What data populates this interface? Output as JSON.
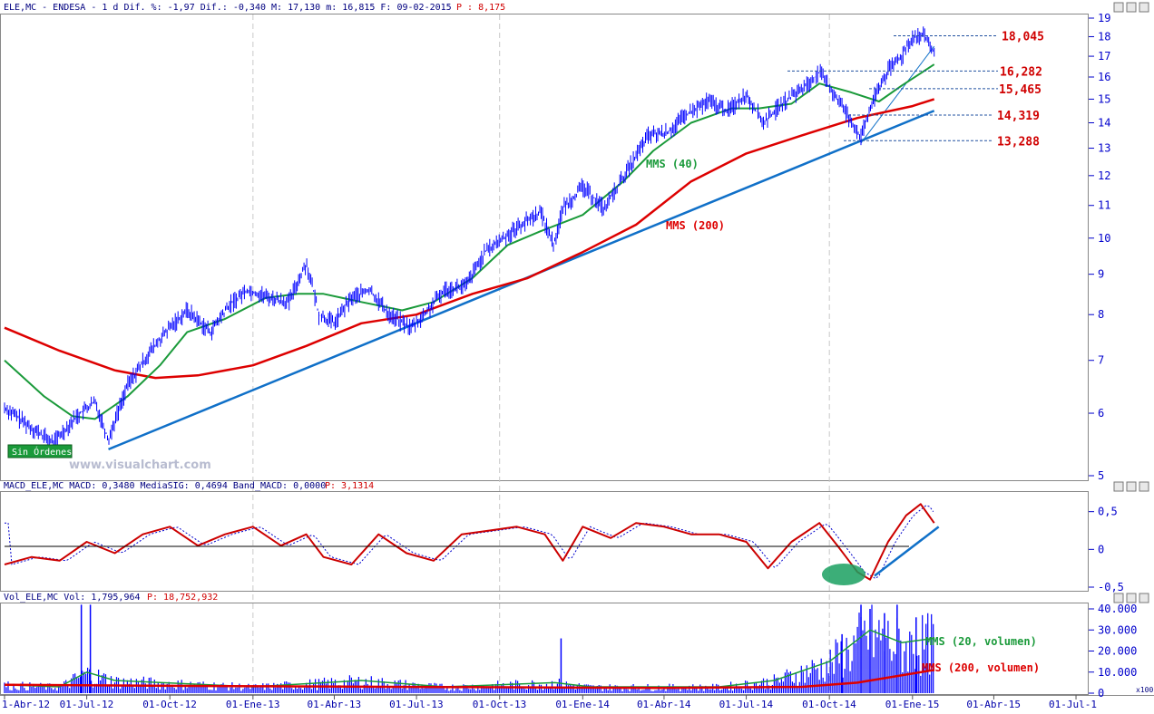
{
  "headers": {
    "price": "ELE,MC - ENDESA -  1 d Dif. %: -1,97 Dif.: -0,340 M: 17,130 m: 16,815 F: 09-02-2015",
    "price_p": "P : 8,175",
    "macd": "MACD_ELE,MC MACD: 0,3480 MediaSIG: 0,4694 Band_MACD: 0,0000",
    "macd_p": "P: 3,1314",
    "vol": "Vol_ELE,MC Vol: 1,795,964",
    "vol_p": "P: 18,752,932"
  },
  "badge": "Sin Órdenes",
  "watermark": "www.visualchart.com",
  "volume_scale": "x100",
  "colors": {
    "price": "#0000ff",
    "mms40": "#1a9a3a",
    "mms200": "#dd0000",
    "trend": "#1070c8",
    "levels": "#d00000",
    "axis_text": "#0000cc"
  },
  "chart_data": [
    {
      "type": "line",
      "panel": "price",
      "y_scale": "log",
      "ylim": [
        5,
        19
      ],
      "y_ticks": [
        "5",
        "6",
        "7",
        "8",
        "9",
        "10",
        "11",
        "12",
        "13",
        "14",
        "15",
        "16",
        "17",
        "18",
        "19"
      ],
      "annotations": {
        "mms40": "MMS (40)",
        "mms200": "MMS (200)",
        "levels": [
          {
            "label": "18,045",
            "value": 18.045
          },
          {
            "label": "16,282",
            "value": 16.282
          },
          {
            "label": "15,465",
            "value": 15.465
          },
          {
            "label": "14,319",
            "value": 14.319
          },
          {
            "label": "13,288",
            "value": 13.288
          }
        ]
      },
      "series": [
        {
          "name": "ELE,MC",
          "points": [
            [
              "2012-04-01",
              6.1
            ],
            [
              "2012-05-01",
              5.75
            ],
            [
              "2012-05-25",
              5.5
            ],
            [
              "2012-06-20",
              5.95
            ],
            [
              "2012-07-10",
              6.2
            ],
            [
              "2012-07-25",
              5.55
            ],
            [
              "2012-08-15",
              6.5
            ],
            [
              "2012-09-10",
              7.2
            ],
            [
              "2012-10-01",
              7.7
            ],
            [
              "2012-10-20",
              8.1
            ],
            [
              "2012-11-15",
              7.6
            ],
            [
              "2012-12-05",
              8.2
            ],
            [
              "2012-12-25",
              8.6
            ],
            [
              "2013-01-20",
              8.4
            ],
            [
              "2013-02-10",
              8.3
            ],
            [
              "2013-03-01",
              9.3
            ],
            [
              "2013-03-15",
              8.0
            ],
            [
              "2013-04-01",
              7.8
            ],
            [
              "2013-04-20",
              8.4
            ],
            [
              "2013-05-10",
              8.6
            ],
            [
              "2013-06-01",
              8.0
            ],
            [
              "2013-06-25",
              7.7
            ],
            [
              "2013-07-10",
              8.0
            ],
            [
              "2013-08-01",
              8.6
            ],
            [
              "2013-08-25",
              8.7
            ],
            [
              "2013-09-15",
              9.6
            ],
            [
              "2013-10-10",
              10.1
            ],
            [
              "2013-10-25",
              10.4
            ],
            [
              "2013-11-15",
              10.8
            ],
            [
              "2013-11-30",
              9.8
            ],
            [
              "2013-12-10",
              10.9
            ],
            [
              "2014-01-01",
              11.6
            ],
            [
              "2014-01-25",
              10.9
            ],
            [
              "2014-02-20",
              12.2
            ],
            [
              "2014-03-15",
              13.5
            ],
            [
              "2014-04-05",
              13.6
            ],
            [
              "2014-04-25",
              14.3
            ],
            [
              "2014-05-20",
              14.9
            ],
            [
              "2014-06-10",
              14.5
            ],
            [
              "2014-07-01",
              15.2
            ],
            [
              "2014-07-20",
              14.0
            ],
            [
              "2014-08-10",
              14.8
            ],
            [
              "2014-09-05",
              15.6
            ],
            [
              "2014-09-20",
              16.2
            ],
            [
              "2014-10-05",
              15.3
            ],
            [
              "2014-10-20",
              14.4
            ],
            [
              "2014-11-05",
              13.4
            ],
            [
              "2014-11-20",
              15.1
            ],
            [
              "2014-12-05",
              16.3
            ],
            [
              "2014-12-20",
              17.0
            ],
            [
              "2015-01-01",
              18.0
            ],
            [
              "2015-01-15",
              18.0
            ],
            [
              "2015-01-25",
              17.1
            ]
          ]
        },
        {
          "name": "MMS (40)",
          "points": [
            [
              "2012-04-01",
              7.0
            ],
            [
              "2012-05-15",
              6.3
            ],
            [
              "2012-06-15",
              5.95
            ],
            [
              "2012-07-10",
              5.9
            ],
            [
              "2012-08-15",
              6.3
            ],
            [
              "2012-09-20",
              6.9
            ],
            [
              "2012-10-20",
              7.6
            ],
            [
              "2012-12-01",
              7.9
            ],
            [
              "2013-01-15",
              8.4
            ],
            [
              "2013-02-20",
              8.5
            ],
            [
              "2013-03-20",
              8.5
            ],
            [
              "2013-05-01",
              8.3
            ],
            [
              "2013-06-15",
              8.1
            ],
            [
              "2013-07-20",
              8.3
            ],
            [
              "2013-09-01",
              8.9
            ],
            [
              "2013-10-10",
              9.8
            ],
            [
              "2013-11-15",
              10.2
            ],
            [
              "2014-01-01",
              10.7
            ],
            [
              "2014-02-15",
              11.8
            ],
            [
              "2014-03-20",
              12.9
            ],
            [
              "2014-05-01",
              14.0
            ],
            [
              "2014-06-15",
              14.6
            ],
            [
              "2014-07-15",
              14.6
            ],
            [
              "2014-08-20",
              14.8
            ],
            [
              "2014-09-20",
              15.7
            ],
            [
              "2014-10-25",
              15.3
            ],
            [
              "2014-11-25",
              14.9
            ],
            [
              "2014-12-20",
              15.6
            ],
            [
              "2015-01-25",
              16.6
            ]
          ]
        },
        {
          "name": "MMS (200)",
          "points": [
            [
              "2012-04-01",
              7.7
            ],
            [
              "2012-06-01",
              7.2
            ],
            [
              "2012-08-01",
              6.8
            ],
            [
              "2012-09-15",
              6.65
            ],
            [
              "2012-11-01",
              6.7
            ],
            [
              "2013-01-01",
              6.9
            ],
            [
              "2013-03-01",
              7.3
            ],
            [
              "2013-05-01",
              7.8
            ],
            [
              "2013-07-01",
              8.0
            ],
            [
              "2013-09-01",
              8.5
            ],
            [
              "2013-11-01",
              8.9
            ],
            [
              "2014-01-01",
              9.6
            ],
            [
              "2014-03-01",
              10.4
            ],
            [
              "2014-05-01",
              11.8
            ],
            [
              "2014-07-01",
              12.8
            ],
            [
              "2014-09-01",
              13.5
            ],
            [
              "2014-11-01",
              14.2
            ],
            [
              "2015-01-01",
              14.7
            ],
            [
              "2015-01-25",
              15.0
            ]
          ]
        }
      ],
      "trendlines": [
        {
          "from": [
            "2012-07-25",
            5.4
          ],
          "to": [
            "2015-01-25",
            14.5
          ]
        },
        {
          "from": [
            "2014-11-05",
            13.2
          ],
          "to": [
            "2015-01-25",
            17.5
          ]
        }
      ]
    },
    {
      "type": "line",
      "panel": "macd",
      "ylim": [
        -0.5,
        0.7
      ],
      "y_ticks": [
        "0,5",
        "0",
        "-0,5"
      ],
      "series": [
        {
          "name": "MACD",
          "points": [
            [
              "2012-04-01",
              -0.2
            ],
            [
              "2012-05-01",
              -0.1
            ],
            [
              "2012-06-01",
              -0.15
            ],
            [
              "2012-07-01",
              0.1
            ],
            [
              "2012-08-01",
              -0.05
            ],
            [
              "2012-09-01",
              0.2
            ],
            [
              "2012-10-01",
              0.3
            ],
            [
              "2012-11-01",
              0.05
            ],
            [
              "2012-12-01",
              0.2
            ],
            [
              "2013-01-01",
              0.3
            ],
            [
              "2013-02-01",
              0.05
            ],
            [
              "2013-03-01",
              0.2
            ],
            [
              "2013-03-20",
              -0.1
            ],
            [
              "2013-04-20",
              -0.2
            ],
            [
              "2013-05-20",
              0.2
            ],
            [
              "2013-06-20",
              -0.05
            ],
            [
              "2013-07-20",
              -0.15
            ],
            [
              "2013-08-20",
              0.2
            ],
            [
              "2013-09-20",
              0.25
            ],
            [
              "2013-10-20",
              0.3
            ],
            [
              "2013-11-20",
              0.2
            ],
            [
              "2013-12-10",
              -0.15
            ],
            [
              "2014-01-01",
              0.3
            ],
            [
              "2014-02-01",
              0.15
            ],
            [
              "2014-03-01",
              0.35
            ],
            [
              "2014-04-01",
              0.3
            ],
            [
              "2014-05-01",
              0.2
            ],
            [
              "2014-06-01",
              0.2
            ],
            [
              "2014-07-01",
              0.1
            ],
            [
              "2014-07-25",
              -0.25
            ],
            [
              "2014-08-20",
              0.1
            ],
            [
              "2014-09-20",
              0.35
            ],
            [
              "2014-10-10",
              0.05
            ],
            [
              "2014-11-01",
              -0.3
            ],
            [
              "2014-11-15",
              -0.4
            ],
            [
              "2014-12-05",
              0.1
            ],
            [
              "2014-12-25",
              0.45
            ],
            [
              "2015-01-10",
              0.6
            ],
            [
              "2015-01-25",
              0.35
            ]
          ]
        }
      ]
    },
    {
      "type": "bar",
      "panel": "volume",
      "ylim": [
        0,
        40000
      ],
      "y_ticks": [
        "0",
        "10.000",
        "20.000",
        "30.000",
        "40.000"
      ],
      "annotations": {
        "ma20": "MMS (20, volumen)",
        "ma200": "MMS (200, volumen)"
      },
      "series": [
        {
          "name": "MMS (20, volumen)",
          "points": [
            [
              "2012-04-01",
              4000
            ],
            [
              "2012-06-01",
              3000
            ],
            [
              "2012-07-01",
              10000
            ],
            [
              "2012-08-01",
              6000
            ],
            [
              "2013-01-01",
              3000
            ],
            [
              "2013-05-01",
              6000
            ],
            [
              "2013-08-01",
              3000
            ],
            [
              "2013-12-01",
              5000
            ],
            [
              "2014-01-10",
              3000
            ],
            [
              "2014-06-01",
              3000
            ],
            [
              "2014-08-01",
              6000
            ],
            [
              "2014-10-01",
              15000
            ],
            [
              "2014-11-15",
              30000
            ],
            [
              "2014-12-20",
              24000
            ],
            [
              "2015-01-25",
              26000
            ]
          ]
        },
        {
          "name": "MMS (200, volumen)",
          "points": [
            [
              "2012-04-01",
              4000
            ],
            [
              "2012-10-01",
              3500
            ],
            [
              "2013-06-01",
              3000
            ],
            [
              "2014-04-01",
              2500
            ],
            [
              "2014-09-01",
              3000
            ],
            [
              "2014-11-01",
              5000
            ],
            [
              "2015-01-25",
              11000
            ]
          ]
        }
      ],
      "spikes": [
        [
          "2012-06-25",
          42000
        ],
        [
          "2012-07-05",
          42000
        ],
        [
          "2013-12-08",
          26000
        ],
        [
          "2014-10-15",
          28000
        ],
        [
          "2014-11-05",
          42000
        ],
        [
          "2014-11-15",
          40000
        ],
        [
          "2014-12-01",
          38000
        ],
        [
          "2014-12-15",
          42000
        ],
        [
          "2015-01-05",
          36000
        ]
      ]
    }
  ],
  "x_axis": {
    "range": [
      "2012-04-01",
      "2015-07-10"
    ],
    "labels": [
      {
        "date": "2012-04-01",
        "text": "1-Abr-12"
      },
      {
        "date": "2012-07-01",
        "text": "01-Jul-12"
      },
      {
        "date": "2012-10-01",
        "text": "01-Oct-12"
      },
      {
        "date": "2013-01-01",
        "text": "01-Ene-13"
      },
      {
        "date": "2013-04-01",
        "text": "01-Abr-13"
      },
      {
        "date": "2013-07-01",
        "text": "01-Jul-13"
      },
      {
        "date": "2013-10-01",
        "text": "01-Oct-13"
      },
      {
        "date": "2014-01-01",
        "text": "01-Ene-14"
      },
      {
        "date": "2014-04-01",
        "text": "01-Abr-14"
      },
      {
        "date": "2014-07-01",
        "text": "01-Jul-14"
      },
      {
        "date": "2014-10-01",
        "text": "01-Oct-14"
      },
      {
        "date": "2015-01-01",
        "text": "01-Ene-15"
      },
      {
        "date": "2015-04-01",
        "text": "01-Abr-15"
      },
      {
        "date": "2015-07-01",
        "text": "01-Jul-1"
      }
    ]
  }
}
